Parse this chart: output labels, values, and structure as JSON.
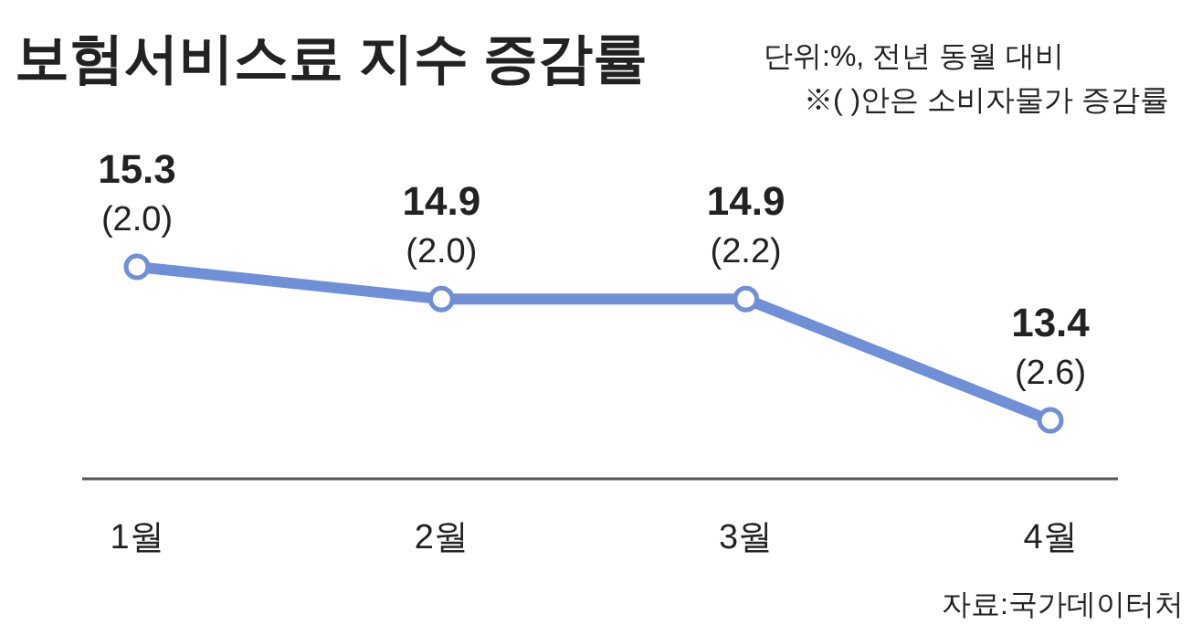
{
  "chart_data": {
    "type": "line",
    "title": "보험서비스료 지수 증감률",
    "categories": [
      "1월",
      "2월",
      "3월",
      "4월"
    ],
    "series": [
      {
        "color": "#6f8fd6",
        "values": [
          15.3,
          14.9,
          14.9,
          13.4
        ]
      }
    ],
    "data_labels": true,
    "marker": "circle",
    "line_style": "solid",
    "annotations": [
      "단위:%, 전년 동월 대비",
      "※( )안은 소비자물가 증감률",
      {
        "text": "(2.0)",
        "x": "1월",
        "y": 15.3
      },
      {
        "text": "(2.0)",
        "x": "2월",
        "y": 14.9
      },
      {
        "text": "(2.2)",
        "x": "3월",
        "y": 14.9
      },
      {
        "text": "(2.6)",
        "x": "4월",
        "y": 13.4
      },
      "자료:국가데이터처"
    ]
  }
}
